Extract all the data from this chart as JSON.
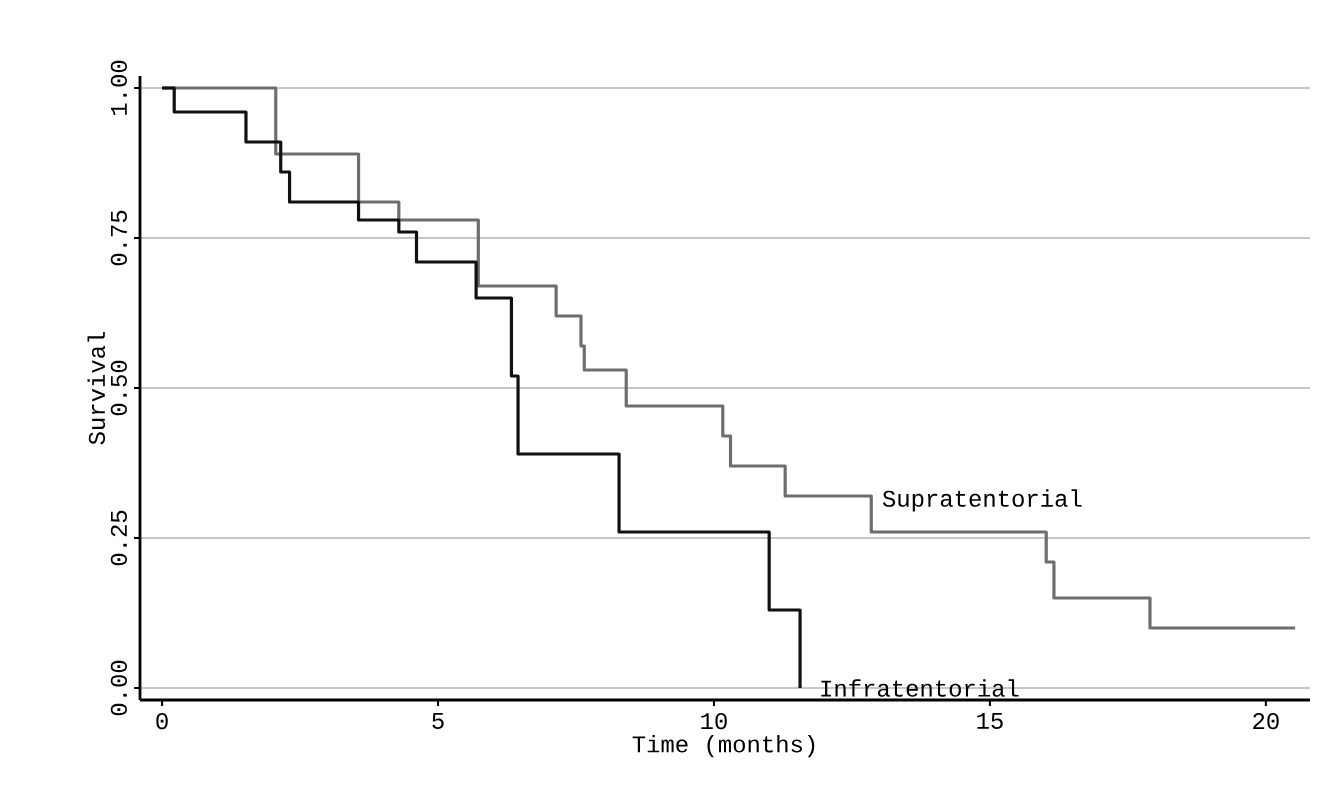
{
  "chart_data": {
    "type": "step",
    "xlabel": "Time (months)",
    "ylabel": "Survival",
    "xlim": [
      -0.4,
      20.8
    ],
    "ylim": [
      -0.02,
      1.02
    ],
    "xticks": [
      0,
      5,
      10,
      15,
      20
    ],
    "yticks": [
      {
        "value": 0,
        "label": "0.00"
      },
      {
        "value": 0.25,
        "label": "0.25"
      },
      {
        "value": 0.5,
        "label": "0.50"
      },
      {
        "value": 0.75,
        "label": "0.75"
      },
      {
        "value": 1,
        "label": "1.00"
      }
    ],
    "grid": "y",
    "series": [
      {
        "name": "Supratentorial",
        "color": "#6e6e6e",
        "x": [
          0,
          2.06,
          3.56,
          4.29,
          5.73,
          7.14,
          7.59,
          7.65,
          8.41,
          10.16,
          10.3,
          11.29,
          12.85,
          16.02,
          16.16,
          17.9,
          20.53
        ],
        "values": [
          1,
          0.89,
          0.81,
          0.78,
          0.67,
          0.62,
          0.57,
          0.53,
          0.47,
          0.42,
          0.37,
          0.32,
          0.26,
          0.21,
          0.15,
          0.1,
          0.1
        ]
      },
      {
        "name": "Infratentorial",
        "color": "#111111",
        "x": [
          0,
          0.22,
          1.52,
          2.15,
          2.31,
          3.56,
          4.29,
          4.61,
          5.69,
          6.33,
          6.45,
          8.28,
          11.0,
          11.56
        ],
        "values": [
          1,
          0.96,
          0.91,
          0.86,
          0.81,
          0.78,
          0.76,
          0.71,
          0.65,
          0.52,
          0.39,
          0.26,
          0.13,
          0
        ]
      }
    ]
  }
}
